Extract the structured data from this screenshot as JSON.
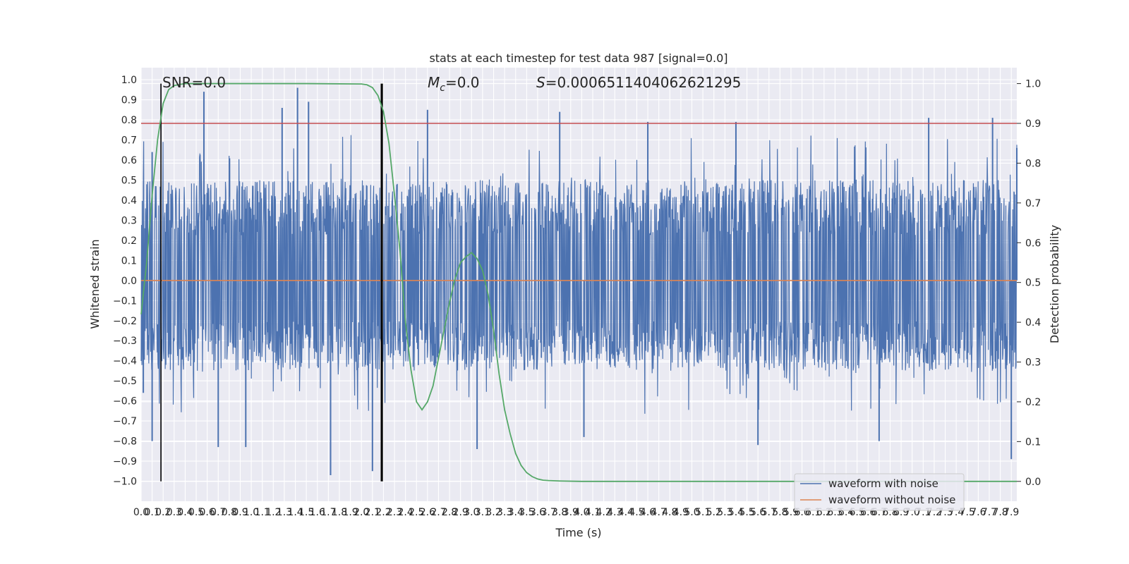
{
  "chart_data": {
    "type": "line",
    "title": "stats at each timestep for test data 987 [signal=0.0]",
    "xlabel": "Time (s)",
    "ylabel": "Whitened strain",
    "y2label": "Detection probability",
    "xlim": [
      0.0,
      7.95
    ],
    "ylim": [
      -1.1,
      1.06
    ],
    "y2lim": [
      -0.05,
      1.04
    ],
    "x_ticks": [
      0.0,
      0.1,
      0.2,
      0.3,
      0.4,
      0.5,
      0.6,
      0.7,
      0.8,
      0.9,
      1.0,
      1.1,
      1.2,
      1.3,
      1.4,
      1.5,
      1.6,
      1.7,
      1.8,
      1.9,
      2.0,
      2.1,
      2.2,
      2.3,
      2.4,
      2.5,
      2.6,
      2.7,
      2.8,
      2.9,
      3.0,
      3.1,
      3.2,
      3.3,
      3.4,
      3.5,
      3.6,
      3.7,
      3.8,
      3.9,
      4.0,
      4.1,
      4.2,
      4.3,
      4.4,
      4.5,
      4.6,
      4.7,
      4.8,
      4.9,
      5.0,
      5.1,
      5.2,
      5.3,
      5.4,
      5.5,
      5.6,
      5.7,
      5.8,
      5.9,
      6.0,
      6.1,
      6.2,
      6.3,
      6.4,
      6.5,
      6.6,
      6.7,
      6.8,
      6.9,
      7.0,
      7.1,
      7.2,
      7.3,
      7.4,
      7.5,
      7.6,
      7.7,
      7.8,
      7.9
    ],
    "y_ticks": [
      -1.0,
      -0.9,
      -0.8,
      -0.7,
      -0.6,
      -0.5,
      -0.4,
      -0.3,
      -0.2,
      -0.1,
      0.0,
      0.1,
      0.2,
      0.3,
      0.4,
      0.5,
      0.6,
      0.7,
      0.8,
      0.9,
      1.0
    ],
    "y2_ticks": [
      0.0,
      0.1,
      0.2,
      0.3,
      0.4,
      0.5,
      0.6,
      0.7,
      0.8,
      0.9,
      1.0
    ],
    "grid": true,
    "legend_position": "bottom-right",
    "annotations": {
      "snr": "SNR=0.0",
      "mc": "=0.0",
      "mc_symbol": "M",
      "mc_subscript": "c",
      "s": "=0.0006511404062621295",
      "s_symbol": "S"
    },
    "series": [
      {
        "name": "waveform with noise",
        "color": "#4c72b0",
        "axis": "left",
        "kind": "dense noise",
        "x_range": [
          0.0,
          7.95
        ],
        "typical_envelope": [
          -0.45,
          0.5
        ],
        "peaks": [
          {
            "x": 0.57,
            "y": 0.94
          },
          {
            "x": 1.28,
            "y": 0.86
          },
          {
            "x": 1.42,
            "y": 0.96
          },
          {
            "x": 1.52,
            "y": 0.89
          },
          {
            "x": 2.6,
            "y": 0.85
          },
          {
            "x": 3.8,
            "y": 0.84
          },
          {
            "x": 4.6,
            "y": 0.79
          },
          {
            "x": 5.4,
            "y": 0.79
          },
          {
            "x": 7.15,
            "y": 0.81
          },
          {
            "x": 7.73,
            "y": 0.81
          },
          {
            "x": 0.1,
            "y": 0.64
          },
          {
            "x": 7.95,
            "y": 0.66
          }
        ],
        "troughs": [
          {
            "x": 0.02,
            "y": -0.56
          },
          {
            "x": 0.1,
            "y": -0.8
          },
          {
            "x": 0.7,
            "y": -0.83
          },
          {
            "x": 0.95,
            "y": -0.83
          },
          {
            "x": 1.72,
            "y": -0.97
          },
          {
            "x": 2.1,
            "y": -0.95
          },
          {
            "x": 3.05,
            "y": -0.84
          },
          {
            "x": 4.02,
            "y": -0.78
          },
          {
            "x": 5.6,
            "y": -0.82
          },
          {
            "x": 6.7,
            "y": -0.8
          },
          {
            "x": 7.9,
            "y": -0.89
          }
        ]
      },
      {
        "name": "waveform without noise",
        "color": "#dd8452",
        "axis": "left",
        "x": [
          0.0,
          7.95
        ],
        "y": [
          0.0,
          0.0
        ]
      },
      {
        "name": "",
        "color": "#55a868",
        "axis": "right",
        "x": [
          0.0,
          0.05,
          0.1,
          0.15,
          0.2,
          0.25,
          0.3,
          0.35,
          0.4,
          0.5,
          0.7,
          1.0,
          1.5,
          2.0,
          2.05,
          2.1,
          2.15,
          2.2,
          2.25,
          2.3,
          2.35,
          2.4,
          2.45,
          2.5,
          2.55,
          2.6,
          2.65,
          2.7,
          2.75,
          2.8,
          2.85,
          2.9,
          2.95,
          3.0,
          3.05,
          3.1,
          3.15,
          3.2,
          3.25,
          3.3,
          3.35,
          3.4,
          3.45,
          3.5,
          3.55,
          3.6,
          3.65,
          3.7,
          3.8,
          4.0,
          5.0,
          6.0,
          7.0,
          7.95
        ],
        "y": [
          0.42,
          0.55,
          0.72,
          0.86,
          0.95,
          0.985,
          0.995,
          0.998,
          1.0,
          1.0,
          1.0,
          1.0,
          1.0,
          0.999,
          0.997,
          0.99,
          0.97,
          0.93,
          0.85,
          0.72,
          0.58,
          0.4,
          0.28,
          0.2,
          0.18,
          0.2,
          0.24,
          0.31,
          0.38,
          0.45,
          0.51,
          0.55,
          0.565,
          0.575,
          0.56,
          0.53,
          0.47,
          0.38,
          0.27,
          0.18,
          0.12,
          0.07,
          0.04,
          0.022,
          0.012,
          0.006,
          0.003,
          0.002,
          0.001,
          0.0,
          0.0,
          0.0,
          0.0,
          0.0
        ]
      }
    ],
    "threshold_line": {
      "color": "#c44e52",
      "y2": 0.9
    },
    "vertical_markers": [
      {
        "x": 0.18,
        "color": "#000000"
      },
      {
        "x": 2.18,
        "color": "#000000"
      },
      {
        "x": 2.19,
        "color": "#000000"
      }
    ]
  }
}
